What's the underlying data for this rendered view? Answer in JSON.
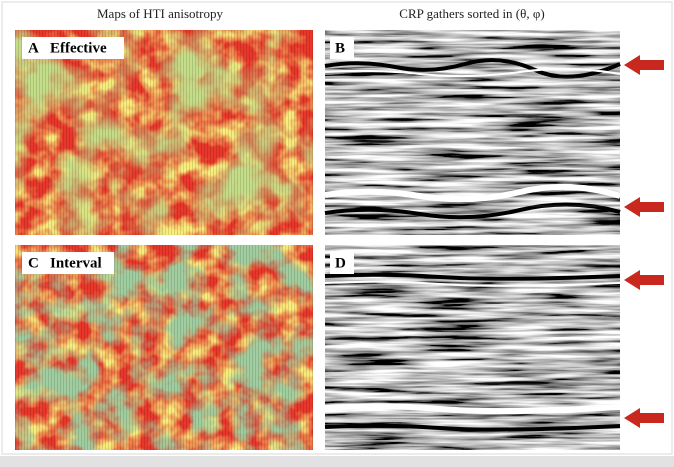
{
  "header": {
    "left_title": "Maps of HTI anisotropy",
    "right_title": "CRP gathers sorted in (θ, φ)"
  },
  "panels": [
    {
      "letter": "A",
      "label": "Effective"
    },
    {
      "letter": "B"
    },
    {
      "letter": "C",
      "label": "Interval"
    },
    {
      "letter": "D"
    }
  ]
}
